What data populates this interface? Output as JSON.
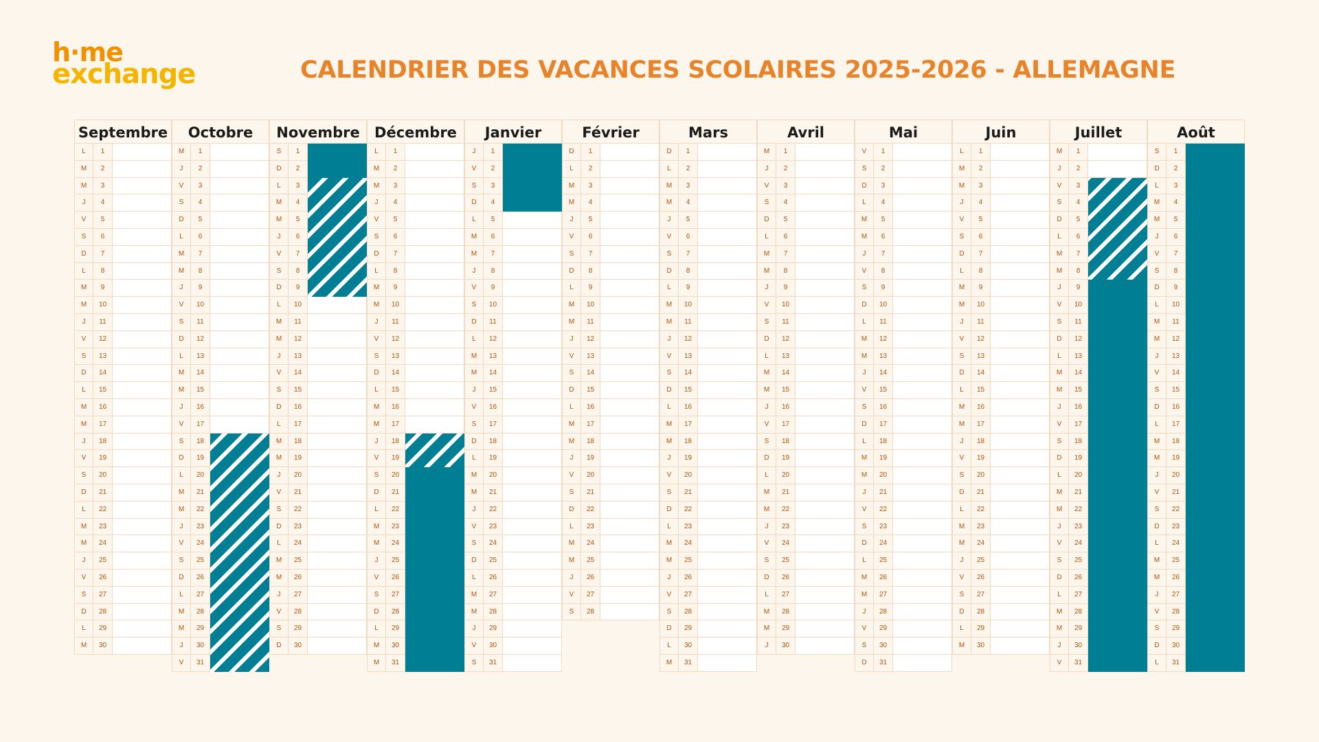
{
  "logo": {
    "line1": "h·me",
    "line2": "exchange"
  },
  "title": "CALENDRIER DES VACANCES SCOLAIRES 2025-2026 - ALLEMAGNE",
  "colors": {
    "background": "#fdf6ec",
    "vacation": "#007f94",
    "title": "#e8832a",
    "logo_orange": "#f29100",
    "logo_yellow": "#f5b400",
    "grid": "#f3d9c0",
    "day_text": "#b45309"
  },
  "months": [
    {
      "name": "Septembre",
      "first_weekday": 0,
      "days": 30,
      "vacations": []
    },
    {
      "name": "Octobre",
      "first_weekday": 2,
      "days": 31,
      "vacations": [
        {
          "start": 18,
          "end": 31,
          "style": "hatch"
        }
      ]
    },
    {
      "name": "Novembre",
      "first_weekday": 5,
      "days": 30,
      "vacations": [
        {
          "start": 1,
          "end": 2,
          "style": "solid"
        },
        {
          "start": 3,
          "end": 9,
          "style": "hatch"
        }
      ]
    },
    {
      "name": "Décembre",
      "first_weekday": 0,
      "days": 31,
      "vacations": [
        {
          "start": 18,
          "end": 19,
          "style": "hatch"
        },
        {
          "start": 20,
          "end": 31,
          "style": "solid"
        }
      ]
    },
    {
      "name": "Janvier",
      "first_weekday": 3,
      "days": 31,
      "vacations": [
        {
          "start": 1,
          "end": 4,
          "style": "solid"
        }
      ]
    },
    {
      "name": "Février",
      "first_weekday": 6,
      "days": 28,
      "vacations": []
    },
    {
      "name": "Mars",
      "first_weekday": 6,
      "days": 31,
      "vacations": []
    },
    {
      "name": "Avril",
      "first_weekday": 2,
      "days": 30,
      "vacations": []
    },
    {
      "name": "Mai",
      "first_weekday": 4,
      "days": 31,
      "vacations": []
    },
    {
      "name": "Juin",
      "first_weekday": 0,
      "days": 30,
      "vacations": []
    },
    {
      "name": "Juillet",
      "first_weekday": 2,
      "days": 31,
      "vacations": [
        {
          "start": 3,
          "end": 8,
          "style": "hatch"
        },
        {
          "start": 9,
          "end": 31,
          "style": "solid"
        }
      ]
    },
    {
      "name": "Août",
      "first_weekday": 5,
      "days": 31,
      "vacations": [
        {
          "start": 1,
          "end": 31,
          "style": "solid"
        }
      ]
    }
  ],
  "weekday_letters": [
    "L",
    "M",
    "M",
    "J",
    "V",
    "S",
    "D"
  ]
}
